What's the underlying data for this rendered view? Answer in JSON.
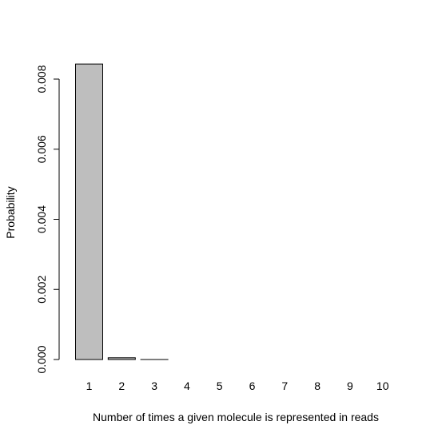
{
  "chart_data": {
    "type": "bar",
    "title": "",
    "xlabel": "Number of times a given molecule is represented in reads",
    "ylabel": "Probability",
    "categories": [
      "1",
      "2",
      "3",
      "4",
      "5",
      "6",
      "7",
      "8",
      "9",
      "10"
    ],
    "values": [
      0.00843,
      5e-05,
      3e-07,
      0.0,
      0.0,
      0.0,
      0.0,
      0.0,
      0.0,
      0.0
    ],
    "ylim": [
      0,
      0.0086
    ],
    "yticks": [
      "0.000",
      "0.002",
      "0.004",
      "0.006",
      "0.008"
    ],
    "ytick_values": [
      0,
      0.002,
      0.004,
      0.006,
      0.008
    ],
    "grid": false,
    "bar_fill": "#bebebe",
    "bar_stroke": "#000000"
  }
}
